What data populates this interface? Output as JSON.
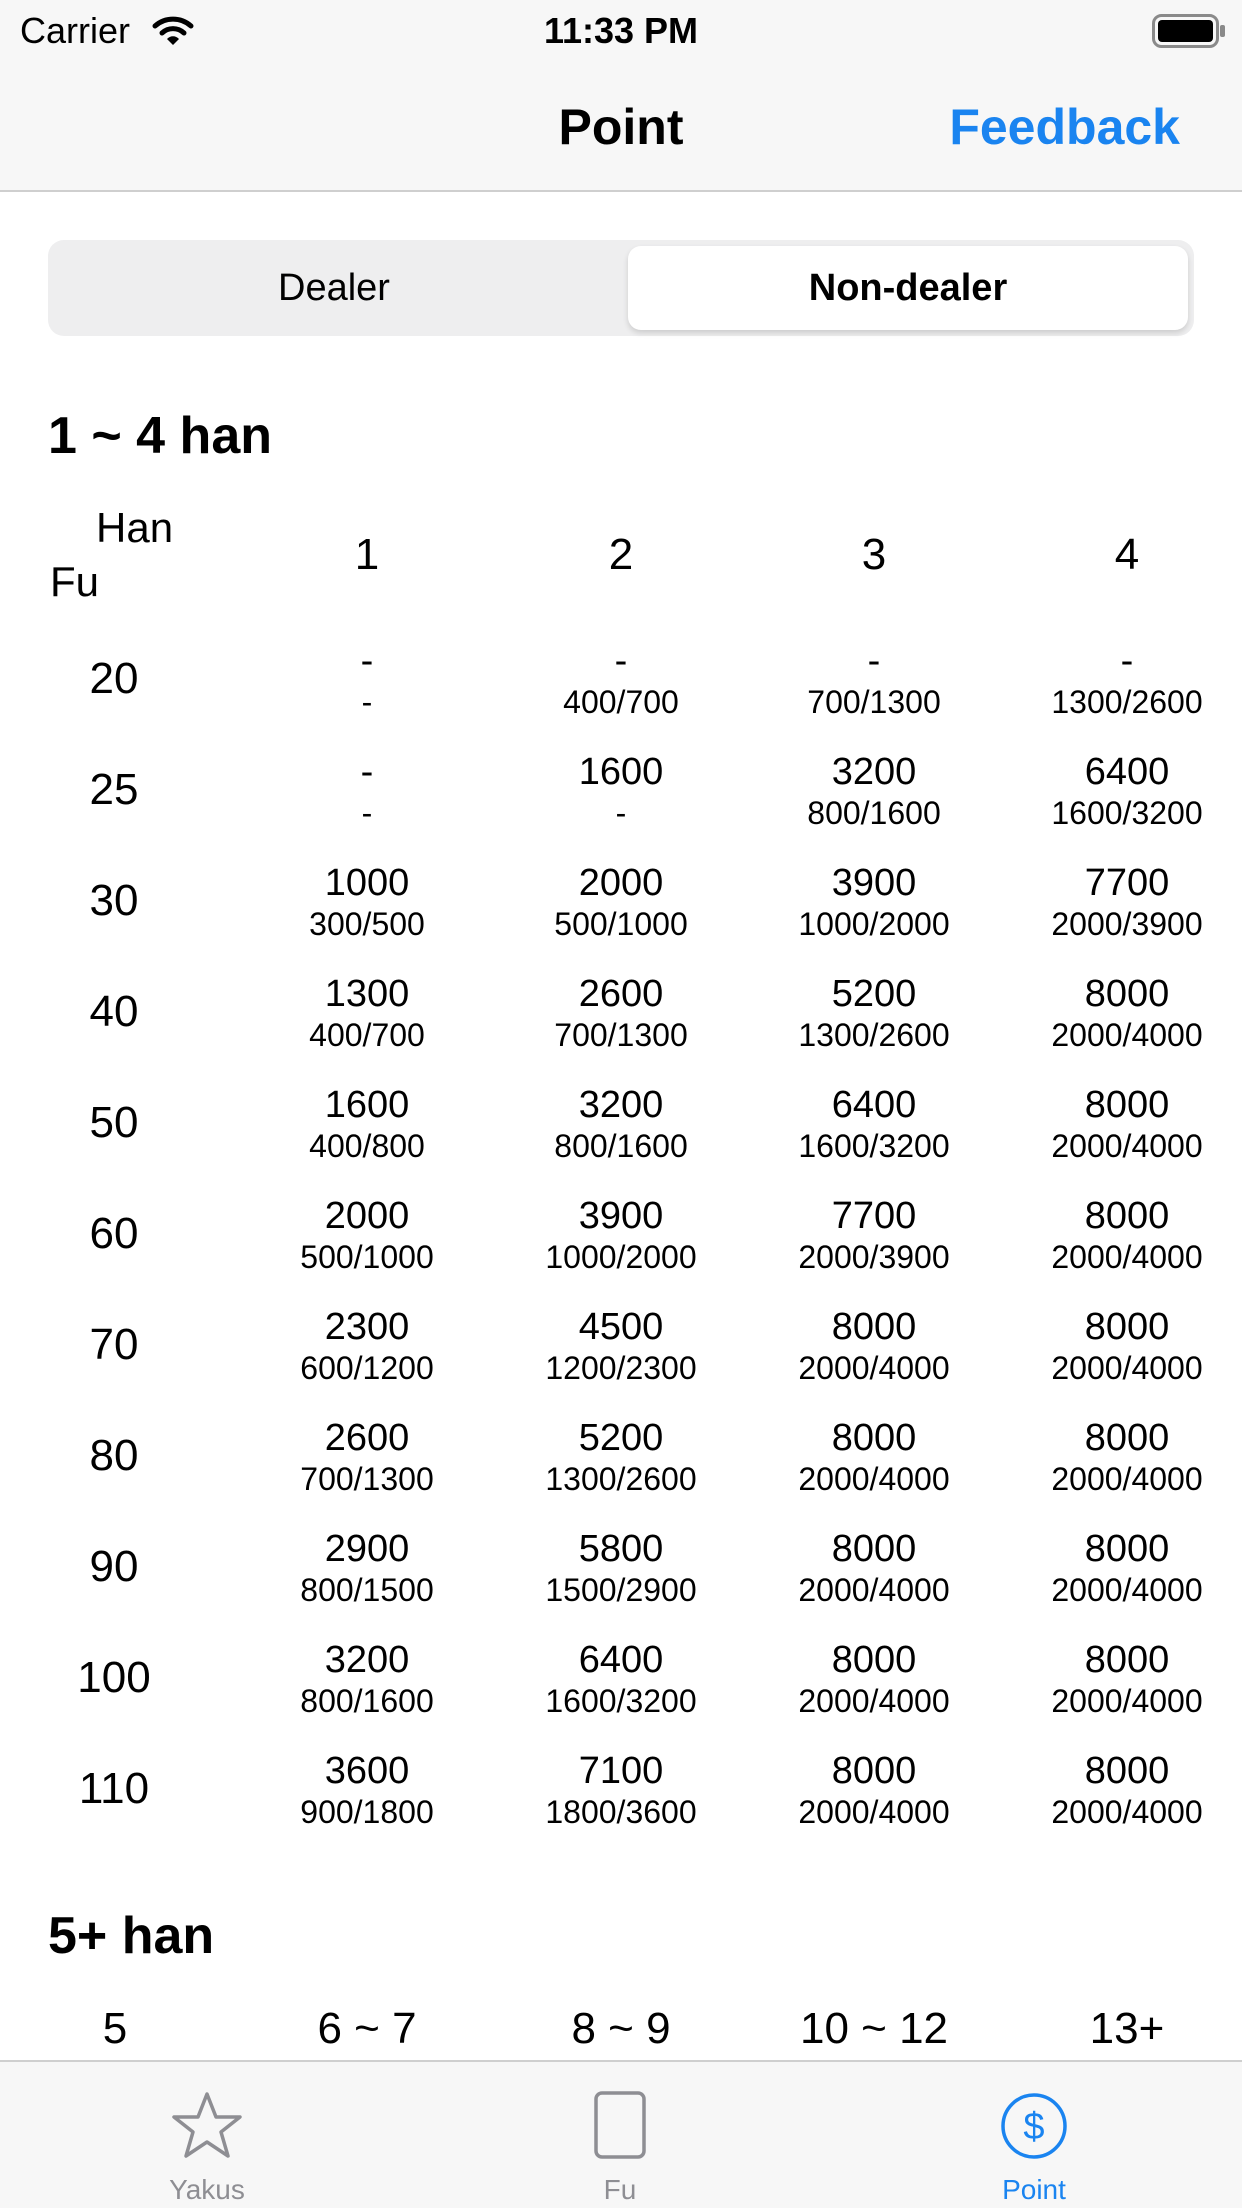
{
  "status_bar": {
    "carrier": "Carrier",
    "time": "11:33 PM",
    "icons": [
      "wifi-icon",
      "battery-icon"
    ]
  },
  "nav": {
    "title": "Point",
    "feedback_label": "Feedback",
    "accent_color": "#1a84f0"
  },
  "segmented": {
    "options": [
      "Dealer",
      "Non-dealer"
    ],
    "selected": "Non-dealer"
  },
  "section_low": {
    "title": "1 ~ 4 han",
    "corner_han": "Han",
    "corner_fu": "Fu",
    "han_headers": [
      "1",
      "2",
      "3",
      "4"
    ],
    "rows": [
      {
        "fu": "20",
        "cells": [
          [
            "-",
            "-"
          ],
          [
            "-",
            "400/700"
          ],
          [
            "-",
            "700/1300"
          ],
          [
            "-",
            "1300/2600"
          ]
        ]
      },
      {
        "fu": "25",
        "cells": [
          [
            "-",
            "-"
          ],
          [
            "1600",
            "-"
          ],
          [
            "3200",
            "800/1600"
          ],
          [
            "6400",
            "1600/3200"
          ]
        ]
      },
      {
        "fu": "30",
        "cells": [
          [
            "1000",
            "300/500"
          ],
          [
            "2000",
            "500/1000"
          ],
          [
            "3900",
            "1000/2000"
          ],
          [
            "7700",
            "2000/3900"
          ]
        ]
      },
      {
        "fu": "40",
        "cells": [
          [
            "1300",
            "400/700"
          ],
          [
            "2600",
            "700/1300"
          ],
          [
            "5200",
            "1300/2600"
          ],
          [
            "8000",
            "2000/4000"
          ]
        ]
      },
      {
        "fu": "50",
        "cells": [
          [
            "1600",
            "400/800"
          ],
          [
            "3200",
            "800/1600"
          ],
          [
            "6400",
            "1600/3200"
          ],
          [
            "8000",
            "2000/4000"
          ]
        ]
      },
      {
        "fu": "60",
        "cells": [
          [
            "2000",
            "500/1000"
          ],
          [
            "3900",
            "1000/2000"
          ],
          [
            "7700",
            "2000/3900"
          ],
          [
            "8000",
            "2000/4000"
          ]
        ]
      },
      {
        "fu": "70",
        "cells": [
          [
            "2300",
            "600/1200"
          ],
          [
            "4500",
            "1200/2300"
          ],
          [
            "8000",
            "2000/4000"
          ],
          [
            "8000",
            "2000/4000"
          ]
        ]
      },
      {
        "fu": "80",
        "cells": [
          [
            "2600",
            "700/1300"
          ],
          [
            "5200",
            "1300/2600"
          ],
          [
            "8000",
            "2000/4000"
          ],
          [
            "8000",
            "2000/4000"
          ]
        ]
      },
      {
        "fu": "90",
        "cells": [
          [
            "2900",
            "800/1500"
          ],
          [
            "5800",
            "1500/2900"
          ],
          [
            "8000",
            "2000/4000"
          ],
          [
            "8000",
            "2000/4000"
          ]
        ]
      },
      {
        "fu": "100",
        "cells": [
          [
            "3200",
            "800/1600"
          ],
          [
            "6400",
            "1600/3200"
          ],
          [
            "8000",
            "2000/4000"
          ],
          [
            "8000",
            "2000/4000"
          ]
        ]
      },
      {
        "fu": "110",
        "cells": [
          [
            "3600",
            "900/1800"
          ],
          [
            "7100",
            "1800/3600"
          ],
          [
            "8000",
            "2000/4000"
          ],
          [
            "8000",
            "2000/4000"
          ]
        ]
      }
    ]
  },
  "section_high": {
    "title": "5+ han",
    "headers": [
      "5",
      "6 ~ 7",
      "8 ~ 9",
      "10 ~ 12",
      "13+"
    ]
  },
  "tab_bar": {
    "tabs": [
      {
        "label": "Yakus",
        "icon": "star-icon",
        "active": false
      },
      {
        "label": "Fu",
        "icon": "tile-icon",
        "active": false
      },
      {
        "label": "Point",
        "icon": "dollar-icon",
        "active": true
      }
    ],
    "active_color": "#1a84f0",
    "inactive_color": "#8e8e93"
  }
}
